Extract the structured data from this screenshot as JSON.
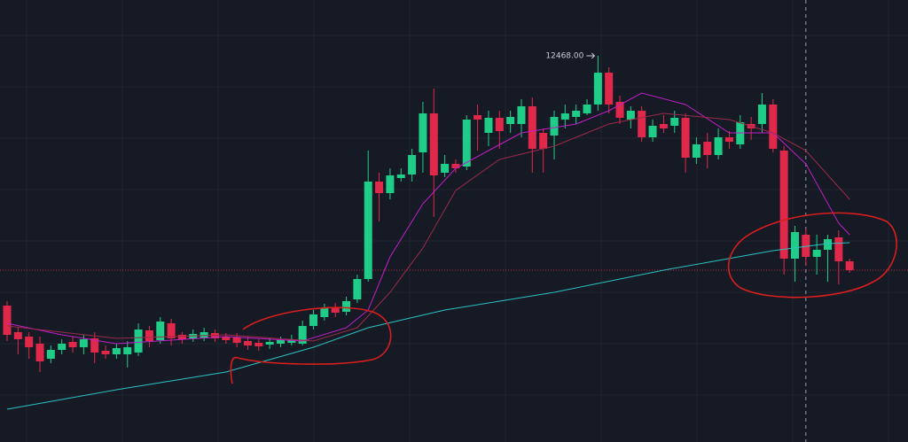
{
  "chart_data": {
    "type": "candlestick",
    "ylim": [
      8108,
      13098
    ],
    "colors": {
      "up": "#1fcc88",
      "down": "#e0294a",
      "background": "#161a25",
      "grid": "#20242f"
    },
    "open": [
      9648,
      9348,
      9298,
      9218,
      9048,
      9148,
      9238,
      9178,
      9278,
      9138,
      9098,
      9098,
      9118,
      9368,
      9258,
      9448,
      9318,
      9278,
      9278,
      9338,
      9298,
      9288,
      9248,
      9228,
      9208,
      9218,
      9228,
      9218,
      9418,
      9518,
      9618,
      9578,
      9718,
      9948,
      11048,
      10918,
      11088,
      11128,
      11378,
      11818,
      11148,
      11248,
      11218,
      11798,
      11598,
      11768,
      11698,
      11698,
      11898,
      11598,
      11568,
      11748,
      11778,
      11818,
      11918,
      12278,
      11948,
      11748,
      11848,
      11548,
      11698,
      11678,
      11768,
      11318,
      11498,
      11348,
      11548,
      11468,
      11698,
      11698,
      11918,
      11398,
      10178,
      10448,
      10198,
      10278,
      10418,
      10148
    ],
    "high": [
      9698,
      9398,
      9348,
      9298,
      9198,
      9268,
      9298,
      9318,
      9348,
      9198,
      9218,
      9248,
      9448,
      9418,
      9518,
      9498,
      9348,
      9378,
      9398,
      9378,
      9338,
      9338,
      9298,
      9268,
      9278,
      9298,
      9318,
      9478,
      9598,
      9668,
      9678,
      9748,
      9998,
      11398,
      11148,
      11198,
      11198,
      11418,
      11948,
      12098,
      11348,
      11298,
      11798,
      11918,
      11848,
      11848,
      11848,
      11978,
      11998,
      11648,
      11848,
      11918,
      11918,
      11978,
      12468,
      12338,
      12018,
      11898,
      11898,
      11748,
      11798,
      11848,
      11818,
      11548,
      11598,
      11648,
      11618,
      11798,
      11778,
      12048,
      11978,
      11448,
      10548,
      10518,
      10448,
      10448,
      10498,
      10178
    ],
    "low": [
      9248,
      9098,
      9048,
      8898,
      8998,
      9098,
      9118,
      9098,
      8998,
      9048,
      9048,
      8948,
      9078,
      9178,
      9218,
      9198,
      9218,
      9238,
      9248,
      9238,
      9218,
      9178,
      9148,
      9138,
      9158,
      9178,
      9198,
      9198,
      9378,
      9478,
      9518,
      9538,
      9678,
      9918,
      10598,
      10848,
      11048,
      11048,
      11148,
      10648,
      11098,
      11148,
      11178,
      11398,
      11448,
      11418,
      11598,
      11548,
      11148,
      11148,
      11298,
      11648,
      11698,
      11798,
      11848,
      11818,
      11698,
      11648,
      11498,
      11498,
      11598,
      11598,
      11148,
      11248,
      11198,
      11298,
      11418,
      11418,
      11518,
      11598,
      11378,
      9998,
      9918,
      10098,
      9998,
      9918,
      9888,
      10018
    ],
    "close": [
      9318,
      9268,
      9178,
      9018,
      9148,
      9218,
      9178,
      9268,
      9118,
      9098,
      9168,
      9178,
      9378,
      9248,
      9468,
      9278,
      9268,
      9328,
      9348,
      9278,
      9258,
      9228,
      9198,
      9188,
      9238,
      9258,
      9268,
      9418,
      9548,
      9618,
      9568,
      9698,
      9948,
      11048,
      10918,
      11118,
      11128,
      11348,
      11818,
      11118,
      11248,
      11198,
      11748,
      11748,
      11768,
      11618,
      11778,
      11898,
      11418,
      11418,
      11778,
      11818,
      11848,
      11918,
      12278,
      11918,
      11768,
      11848,
      11548,
      11678,
      11648,
      11768,
      11318,
      11468,
      11348,
      11548,
      11498,
      11718,
      11648,
      11918,
      11418,
      10178,
      10478,
      10198,
      10278,
      10398,
      10148,
      10048
    ],
    "moving_averages": [
      {
        "color": "#2bc3c3",
        "x": [
          0,
          10,
          20,
          28,
          33,
          40,
          50,
          60,
          70,
          75,
          77
        ],
        "values": [
          8478,
          8698,
          8898,
          9178,
          9398,
          9598,
          9798,
          10048,
          10268,
          10348,
          10358
        ]
      },
      {
        "color": "#c21ec7",
        "x": [
          0,
          5,
          10,
          20,
          27,
          31,
          33,
          35,
          38,
          41,
          44,
          47,
          52,
          55,
          58,
          62,
          66,
          70,
          73,
          76,
          77
        ],
        "values": [
          9448,
          9318,
          9218,
          9298,
          9248,
          9398,
          9598,
          10198,
          10798,
          11198,
          11398,
          11598,
          11698,
          11848,
          12048,
          11918,
          11598,
          11598,
          11248,
          10578,
          10448
        ]
      },
      {
        "color": "#9b2a4a",
        "x": [
          0,
          10,
          20,
          28,
          32,
          35,
          38,
          41,
          45,
          50,
          55,
          60,
          66,
          70,
          73,
          77
        ],
        "values": [
          9418,
          9278,
          9318,
          9248,
          9398,
          9798,
          10298,
          10948,
          11298,
          11448,
          11698,
          11818,
          11748,
          11598,
          11398,
          10848
        ]
      }
    ],
    "price_line": {
      "value": 10048,
      "color": "#e0294a"
    },
    "crosshair_index": 73,
    "high_marker": {
      "index": 54,
      "value": 12468,
      "label": "12468.00"
    }
  }
}
